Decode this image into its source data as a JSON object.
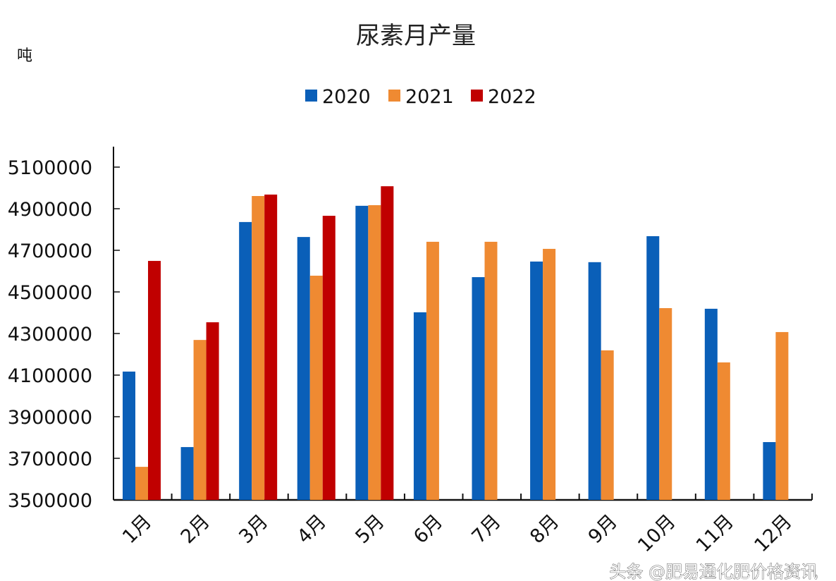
{
  "chart_data": {
    "type": "bar",
    "title": "尿素月产量",
    "ylabel": "吨",
    "xlabel": "",
    "categories": [
      "1月",
      "2月",
      "3月",
      "4月",
      "5月",
      "6月",
      "7月",
      "8月",
      "9月",
      "10月",
      "11月",
      "12月"
    ],
    "series": [
      {
        "name": "2020",
        "color": "#0a5fb8",
        "values": [
          4117000,
          3754000,
          4836000,
          4764000,
          4914000,
          4402000,
          4571000,
          4646000,
          4643000,
          4768000,
          4419000,
          3778000
        ]
      },
      {
        "name": "2021",
        "color": "#ef8a32",
        "values": [
          3659000,
          4269000,
          4961000,
          4578000,
          4917000,
          4741000,
          4741000,
          4707000,
          4219000,
          4422000,
          4161000,
          4307000
        ]
      },
      {
        "name": "2022",
        "color": "#c00000",
        "values": [
          4649000,
          4354000,
          4968000,
          4866000,
          5008000,
          null,
          null,
          null,
          null,
          null,
          null,
          null
        ]
      }
    ],
    "ylim": [
      3500000,
      5200000
    ],
    "yticks": [
      "3500000",
      "3700000",
      "3900000",
      "4100000",
      "4300000",
      "4500000",
      "4700000",
      "4900000",
      "5100000"
    ],
    "grid": false,
    "legend": "top-center"
  },
  "watermark": "头条 @肥易通化肥价格资讯"
}
